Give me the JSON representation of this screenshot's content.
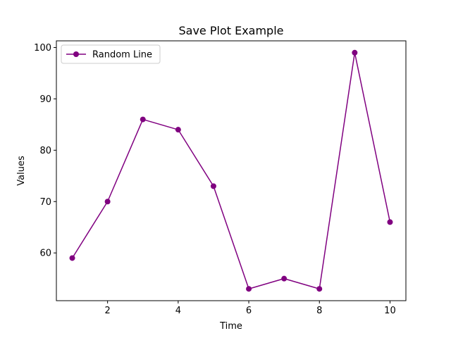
{
  "chart_data": {
    "type": "line",
    "title": "Save Plot Example",
    "xlabel": "Time",
    "ylabel": "Values",
    "x": [
      1,
      2,
      3,
      4,
      5,
      6,
      7,
      8,
      9,
      10
    ],
    "series": [
      {
        "name": "Random Line",
        "values": [
          59,
          70,
          86,
          84,
          73,
          53,
          55,
          53,
          99,
          66
        ],
        "color": "#800080",
        "marker": "circle"
      }
    ],
    "xlim": [
      0.55,
      10.45
    ],
    "ylim": [
      50.7,
      101.3
    ],
    "xticks": [
      2,
      4,
      6,
      8,
      10
    ],
    "yticks": [
      60,
      70,
      80,
      90,
      100
    ],
    "grid": false,
    "legend_position": "upper-left"
  }
}
